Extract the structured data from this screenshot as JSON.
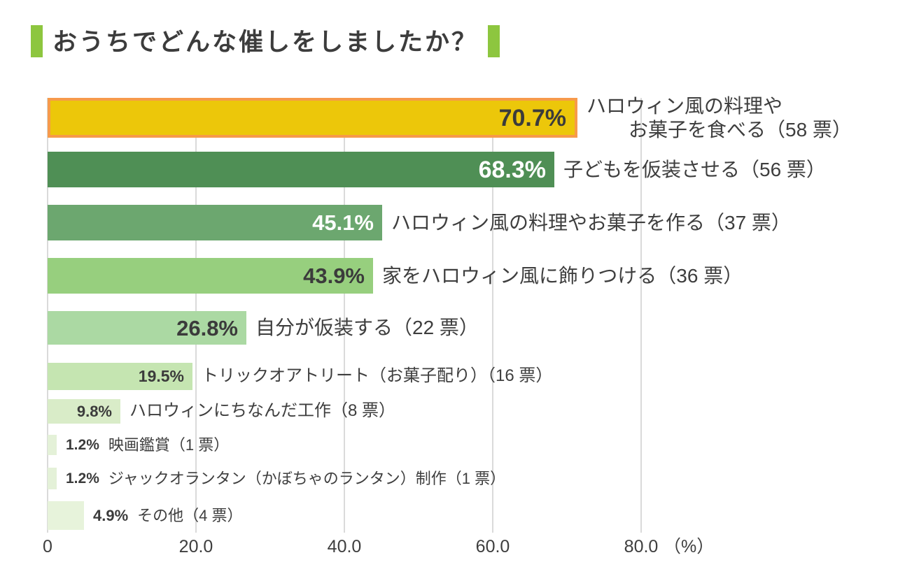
{
  "title": {
    "text": "おうちでどんな催しをしましたか？",
    "accent_color": "#8dc63f",
    "text_color": "#3c3c3c"
  },
  "chart_data": {
    "type": "bar",
    "orientation": "horizontal",
    "title": "おうちでどんな催しをしましたか？",
    "xlabel": "（%）",
    "xlim": [
      0,
      87
    ],
    "grid": true,
    "grid_color": "#dadada",
    "text_color": "#3e3e3e",
    "x_ticks": [
      {
        "label": "0",
        "value": 0
      },
      {
        "label": "20.0",
        "value": 20
      },
      {
        "label": "40.0",
        "value": 40
      },
      {
        "label": "60.0",
        "value": 60
      },
      {
        "label": "80.0",
        "value": 80
      }
    ],
    "unit_label": "（%）",
    "categories": [
      "ハロウィン風の料理やお菓子を食べる",
      "子どもを仮装させる",
      "ハロウィン風の料理やお菓子を作る",
      "家をハロウィン風に飾りつける",
      "自分が仮装する",
      "トリックオアトリート（お菓子配り）",
      "ハロウィンにちなんだ工作",
      "映画鑑賞",
      "ジャックオランタン（かぼちゃのランタン）制作",
      "その他"
    ],
    "values": [
      70.7,
      68.3,
      45.1,
      43.9,
      26.8,
      19.5,
      9.8,
      1.2,
      1.2,
      4.9
    ],
    "votes": [
      58,
      56,
      37,
      36,
      22,
      16,
      8,
      1,
      1,
      4
    ],
    "bars": [
      {
        "value": 70.7,
        "votes": 58,
        "pct_label": "70.7%",
        "label_lines": [
          "ハロウィン風の料理や",
          "お菓子を食べる（58 票）"
        ],
        "color": "#ecc70a",
        "border_color": "#f79a4a",
        "pct_text_color": "#3b3b3b",
        "pct_position": "inside",
        "highlighted": true
      },
      {
        "value": 68.3,
        "votes": 56,
        "pct_label": "68.3%",
        "label_lines": [
          "子どもを仮装させる（56 票）"
        ],
        "color": "#4f8f55",
        "pct_text_color": "#ffffff",
        "pct_position": "inside",
        "highlighted": false
      },
      {
        "value": 45.1,
        "votes": 37,
        "pct_label": "45.1%",
        "label_lines": [
          "ハロウィン風の料理やお菓子を作る（37 票）"
        ],
        "color": "#6ca76f",
        "pct_text_color": "#ffffff",
        "pct_position": "inside",
        "highlighted": false
      },
      {
        "value": 43.9,
        "votes": 36,
        "pct_label": "43.9%",
        "label_lines": [
          "家をハロウィン風に飾りつける（36 票）"
        ],
        "color": "#97cf7e",
        "pct_text_color": "#3b3b3b",
        "pct_position": "inside",
        "highlighted": false
      },
      {
        "value": 26.8,
        "votes": 22,
        "pct_label": "26.8%",
        "label_lines": [
          "自分が仮装する（22 票）"
        ],
        "color": "#abd9a3",
        "pct_text_color": "#3b3b3b",
        "pct_position": "inside",
        "highlighted": false
      },
      {
        "value": 19.5,
        "votes": 16,
        "pct_label": "19.5%",
        "label_lines": [
          "トリックオアトリート（お菓子配り）（16 票）"
        ],
        "color": "#c5e5b1",
        "pct_text_color": "#3b3b3b",
        "pct_position": "inside",
        "highlighted": false
      },
      {
        "value": 9.8,
        "votes": 8,
        "pct_label": "9.8%",
        "label_lines": [
          "ハロウィンにちなんだ工作（8 票）"
        ],
        "color": "#d9ecc8",
        "pct_text_color": "#3b3b3b",
        "pct_position": "inside",
        "highlighted": false
      },
      {
        "value": 1.2,
        "votes": 1,
        "pct_label": "1.2%",
        "label_lines": [
          "映画鑑賞（1 票）"
        ],
        "color": "#e4f1d8",
        "pct_text_color": "#3b3b3b",
        "pct_position": "outside",
        "highlighted": false
      },
      {
        "value": 1.2,
        "votes": 1,
        "pct_label": "1.2%",
        "label_lines": [
          "ジャックオランタン（かぼちゃのランタン）制作（1 票）"
        ],
        "color": "#e4f1d8",
        "pct_text_color": "#3b3b3b",
        "pct_position": "outside",
        "highlighted": false
      },
      {
        "value": 4.9,
        "votes": 4,
        "pct_label": "4.9%",
        "label_lines": [
          "その他（4 票）"
        ],
        "color": "#e7f3db",
        "pct_text_color": "#3b3b3b",
        "pct_position": "outside",
        "highlighted": false
      }
    ]
  }
}
